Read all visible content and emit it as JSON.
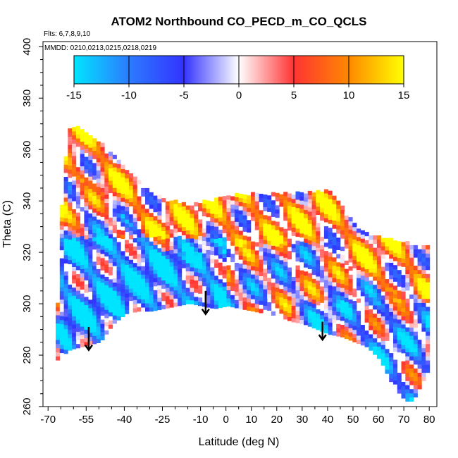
{
  "chart_data": {
    "type": "heatmap",
    "title": "ATOM2 Northbound CO_PECD_m_CO_QCLS",
    "flights_note": "Flts: 6,7,8,9,10",
    "dates_note": "MMDD: 0210,0213,0215,0218,0219",
    "xlabel": "Latitude (deg N)",
    "ylabel": "Theta (C)",
    "xlim": [
      -72,
      83
    ],
    "ylim": [
      260,
      402
    ],
    "x_ticks": [
      -70,
      -55,
      -40,
      -25,
      -10,
      0,
      10,
      20,
      30,
      40,
      50,
      60,
      70,
      80
    ],
    "y_ticks": [
      260,
      280,
      300,
      320,
      340,
      360,
      380,
      400
    ],
    "colorbar": {
      "range": [
        -15,
        15
      ],
      "ticks": [
        -15,
        -10,
        -5,
        0,
        5,
        10,
        15
      ],
      "colors": [
        "#00e5ff",
        "#2c7bff",
        "#3333ff",
        "#ffffff",
        "#ff3333",
        "#ff8800",
        "#ffff00"
      ]
    },
    "data_extent": {
      "upper_boundary": [
        [
          -67,
          300
        ],
        [
          -66,
          330
        ],
        [
          -64,
          355
        ],
        [
          -62,
          368
        ],
        [
          -60,
          368
        ],
        [
          -55,
          366
        ],
        [
          -50,
          362
        ],
        [
          -45,
          357
        ],
        [
          -40,
          352
        ],
        [
          -35,
          348
        ],
        [
          -30,
          343
        ],
        [
          -25,
          340
        ],
        [
          -20,
          339
        ],
        [
          -15,
          338
        ],
        [
          -10,
          339
        ],
        [
          -5,
          340
        ],
        [
          0,
          341
        ],
        [
          5,
          342
        ],
        [
          10,
          342
        ],
        [
          15,
          342
        ],
        [
          20,
          342
        ],
        [
          25,
          342
        ],
        [
          30,
          343
        ],
        [
          35,
          343
        ],
        [
          40,
          343
        ],
        [
          45,
          337
        ],
        [
          50,
          330
        ],
        [
          55,
          327
        ],
        [
          60,
          325
        ],
        [
          65,
          324
        ],
        [
          70,
          323
        ],
        [
          75,
          322
        ],
        [
          80,
          322
        ]
      ],
      "lower_boundary": [
        [
          -67,
          278
        ],
        [
          -62,
          282
        ],
        [
          -58,
          283
        ],
        [
          -54,
          284
        ],
        [
          -50,
          285
        ],
        [
          -45,
          292
        ],
        [
          -40,
          296
        ],
        [
          -35,
          297
        ],
        [
          -30,
          297
        ],
        [
          -25,
          298
        ],
        [
          -20,
          299
        ],
        [
          -15,
          300
        ],
        [
          -10,
          299
        ],
        [
          -5,
          298
        ],
        [
          0,
          299
        ],
        [
          5,
          298
        ],
        [
          10,
          297
        ],
        [
          15,
          296
        ],
        [
          20,
          295
        ],
        [
          25,
          293
        ],
        [
          30,
          292
        ],
        [
          35,
          290
        ],
        [
          40,
          288
        ],
        [
          45,
          287
        ],
        [
          50,
          285
        ],
        [
          55,
          283
        ],
        [
          60,
          278
        ],
        [
          65,
          268
        ],
        [
          70,
          262
        ],
        [
          73,
          262
        ],
        [
          76,
          268
        ],
        [
          80,
          276
        ]
      ]
    },
    "arrows": [
      {
        "lat": -54,
        "theta_top": 291,
        "theta_tip": 282
      },
      {
        "lat": -8,
        "theta_top": 305,
        "theta_tip": 296
      },
      {
        "lat": 38,
        "theta_top": 293,
        "theta_tip": 286
      }
    ]
  }
}
